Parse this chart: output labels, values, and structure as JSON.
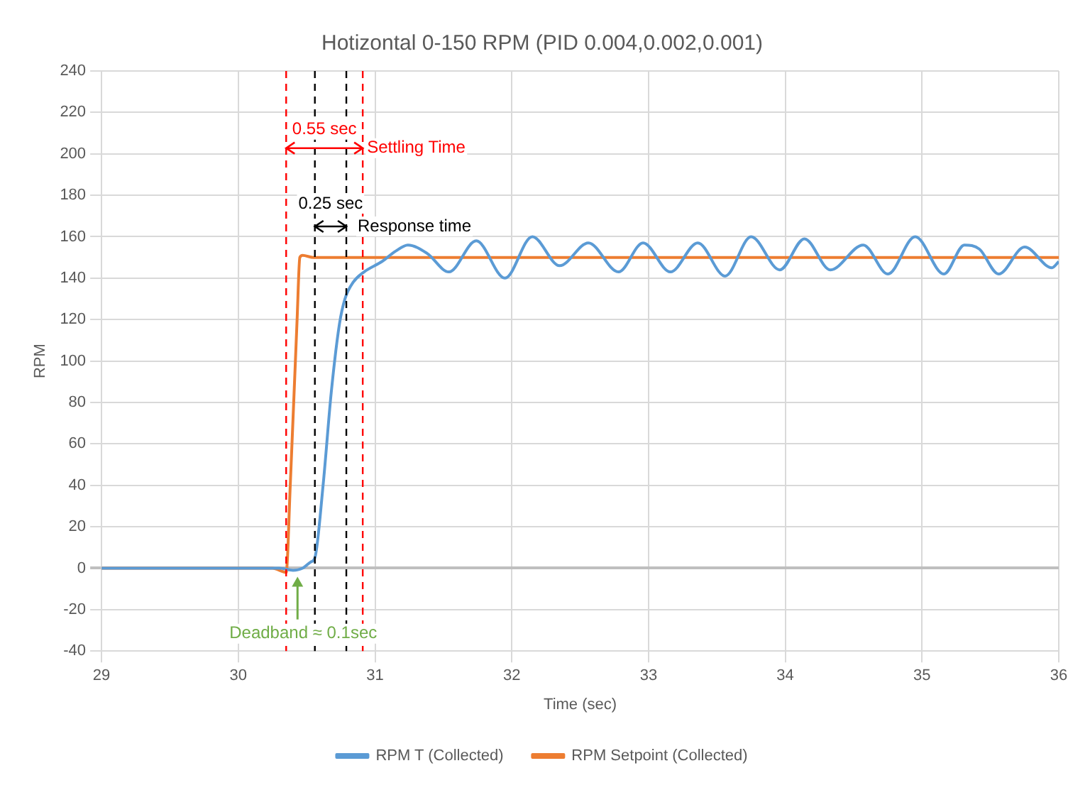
{
  "chart_data": {
    "type": "line",
    "title": "Hotizontal 0-150 RPM (PID 0.004,0.002,0.001)",
    "xlabel": "Time (sec)",
    "ylabel": "RPM",
    "xlim": [
      29,
      36
    ],
    "xticks": [
      29,
      30,
      31,
      32,
      33,
      34,
      35,
      36
    ],
    "ylim": [
      -40,
      240
    ],
    "yticks": [
      -40,
      -20,
      0,
      20,
      40,
      60,
      80,
      100,
      120,
      140,
      160,
      180,
      200,
      220,
      240
    ],
    "grid": true,
    "legend": "bottom",
    "marker": "none",
    "line_style": "solid",
    "series": [
      {
        "name": "RPM T (Collected)",
        "color": "#5b9bd5",
        "x": [
          29,
          30.2,
          30.3,
          30.4,
          30.47,
          30.53,
          30.56,
          30.62,
          30.68,
          30.74,
          30.78,
          30.84,
          30.92,
          31.05,
          31.15,
          31.24,
          31.38,
          31.54,
          31.74,
          31.95,
          32.15,
          32.35,
          32.56,
          32.78,
          32.96,
          33.16,
          33.36,
          33.56,
          33.75,
          33.96,
          34.14,
          34.33,
          34.57,
          34.75,
          34.95,
          35.16,
          35.31,
          35.42,
          35.56,
          35.75,
          35.95,
          36
        ],
        "values": [
          0,
          0,
          0,
          -1,
          0,
          3,
          5,
          40,
          85,
          118,
          130,
          138,
          143,
          148,
          153,
          156,
          152,
          143,
          158,
          140,
          160,
          146,
          157,
          143,
          157,
          143,
          157,
          141,
          160,
          144,
          159,
          144,
          156,
          142,
          160,
          142,
          156,
          154,
          142,
          155,
          145,
          148
        ]
      },
      {
        "name": "RPM Setpoint (Collected)",
        "color": "#ed7d31",
        "x": [
          29,
          30.25,
          30.35,
          30.38,
          30.43,
          30.45,
          30.47,
          30.55,
          36
        ],
        "values": [
          0,
          0,
          -2,
          40,
          120,
          150,
          151,
          150,
          150
        ]
      }
    ],
    "ref_lines": [
      {
        "axis": "x",
        "value": 30.35,
        "color": "#ff0000",
        "line_style": "dashed"
      },
      {
        "axis": "x",
        "value": 30.91,
        "color": "#ff0000",
        "line_style": "dashed"
      },
      {
        "axis": "x",
        "value": 30.56,
        "color": "#000000",
        "line_style": "dashed"
      },
      {
        "axis": "x",
        "value": 30.79,
        "color": "#000000",
        "line_style": "dashed"
      }
    ],
    "annotations": [
      "0.55 sec",
      "Settling Time",
      "0.25 sec",
      "Response time",
      "Deadband ≈ 0.1sec"
    ]
  }
}
